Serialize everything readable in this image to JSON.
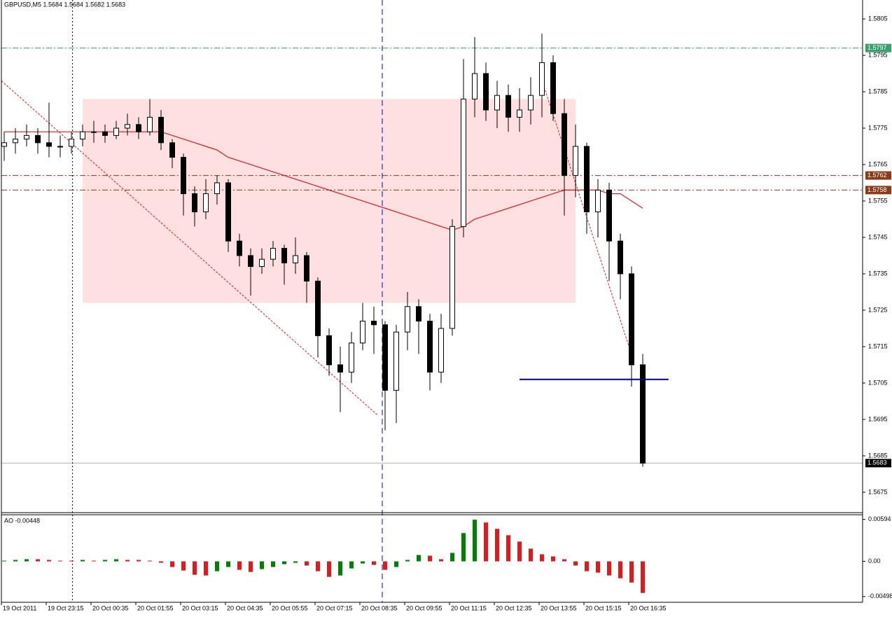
{
  "chart_data": {
    "type": "candlestick",
    "title": "GBPUSD,M5  1.5684 1.5684 1.5682 1.5683",
    "ylim": [
      1.56694,
      1.58102
    ],
    "yticks": [
      1.5805,
      1.5795,
      1.5785,
      1.5775,
      1.5765,
      1.5755,
      1.5745,
      1.5735,
      1.5725,
      1.5715,
      1.5705,
      1.5695,
      1.5685,
      1.5675
    ],
    "x_labels": [
      "19 Oct 2011",
      "19 Oct 23:15",
      "20 Oct 00:35",
      "20 Oct 01:55",
      "20 Oct 03:15",
      "20 Oct 04:35",
      "20 Oct 05:55",
      "20 Oct 07:15",
      "20 Oct 08:35",
      "20 Oct 09:55",
      "20 Oct 11:15",
      "20 Oct 12:35",
      "20 Oct 13:55",
      "20 Oct 15:15",
      "20 Oct 16:35"
    ],
    "bull_color": "#ffffff",
    "bear_color": "#000000",
    "candles": [
      [
        1.577,
        1.5774,
        1.5766,
        1.5771
      ],
      [
        1.5771,
        1.5775,
        1.5768,
        1.5772
      ],
      [
        1.5772,
        1.5776,
        1.577,
        1.5773
      ],
      [
        1.5773,
        1.5775,
        1.5768,
        1.5771
      ],
      [
        1.5771,
        1.5782,
        1.5767,
        1.577
      ],
      [
        1.577,
        1.5773,
        1.5767,
        1.577
      ],
      [
        1.577,
        1.5774,
        1.5768,
        1.5772
      ],
      [
        1.5772,
        1.5776,
        1.577,
        1.5774
      ],
      [
        1.5774,
        1.5777,
        1.5771,
        1.5774
      ],
      [
        1.5774,
        1.5776,
        1.5771,
        1.5773
      ],
      [
        1.5773,
        1.5777,
        1.5772,
        1.5775
      ],
      [
        1.5775,
        1.5779,
        1.5773,
        1.5776
      ],
      [
        1.5776,
        1.5778,
        1.5772,
        1.5774
      ],
      [
        1.5774,
        1.5783,
        1.5773,
        1.5778
      ],
      [
        1.5778,
        1.578,
        1.5769,
        1.5771
      ],
      [
        1.5771,
        1.5772,
        1.5764,
        1.5767
      ],
      [
        1.5767,
        1.5768,
        1.5751,
        1.5757
      ],
      [
        1.5757,
        1.5759,
        1.5748,
        1.5752
      ],
      [
        1.5752,
        1.5761,
        1.575,
        1.5757
      ],
      [
        1.5757,
        1.5762,
        1.5754,
        1.576
      ],
      [
        1.576,
        1.5761,
        1.5741,
        1.5744
      ],
      [
        1.5744,
        1.5746,
        1.5737,
        1.574
      ],
      [
        1.574,
        1.5742,
        1.5729,
        1.5737
      ],
      [
        1.5737,
        1.5742,
        1.5735,
        1.5739
      ],
      [
        1.5739,
        1.5744,
        1.5737,
        1.5742
      ],
      [
        1.5742,
        1.5743,
        1.5732,
        1.5738
      ],
      [
        1.5738,
        1.5745,
        1.5735,
        1.574
      ],
      [
        1.574,
        1.5741,
        1.5727,
        1.5733
      ],
      [
        1.5733,
        1.5734,
        1.5712,
        1.5718
      ],
      [
        1.5718,
        1.572,
        1.5707,
        1.571
      ],
      [
        1.571,
        1.5715,
        1.5697,
        1.5708
      ],
      [
        1.5708,
        1.5719,
        1.5705,
        1.5716
      ],
      [
        1.5716,
        1.5727,
        1.5714,
        1.5722
      ],
      [
        1.5722,
        1.5726,
        1.5713,
        1.5721
      ],
      [
        1.5721,
        1.5722,
        1.5692,
        1.5703
      ],
      [
        1.5703,
        1.5721,
        1.5694,
        1.5719
      ],
      [
        1.5719,
        1.573,
        1.5714,
        1.5726
      ],
      [
        1.5726,
        1.5728,
        1.5713,
        1.5722
      ],
      [
        1.5722,
        1.5724,
        1.5703,
        1.5708
      ],
      [
        1.5708,
        1.5724,
        1.5705,
        1.572
      ],
      [
        1.572,
        1.575,
        1.5718,
        1.5748
      ],
      [
        1.5748,
        1.5794,
        1.5745,
        1.5783
      ],
      [
        1.5783,
        1.58,
        1.5778,
        1.579
      ],
      [
        1.579,
        1.5793,
        1.5777,
        1.578
      ],
      [
        1.578,
        1.5788,
        1.5775,
        1.5784
      ],
      [
        1.5784,
        1.5787,
        1.5774,
        1.5778
      ],
      [
        1.5778,
        1.5786,
        1.5774,
        1.578
      ],
      [
        1.578,
        1.5789,
        1.5776,
        1.5784
      ],
      [
        1.5784,
        1.5801,
        1.5778,
        1.5793
      ],
      [
        1.5793,
        1.5795,
        1.5777,
        1.5779
      ],
      [
        1.5779,
        1.5783,
        1.5751,
        1.5762
      ],
      [
        1.5762,
        1.5776,
        1.5756,
        1.577
      ],
      [
        1.577,
        1.5771,
        1.5746,
        1.5752
      ],
      [
        1.5752,
        1.5761,
        1.5745,
        1.5758
      ],
      [
        1.5758,
        1.576,
        1.5733,
        1.5744
      ],
      [
        1.5744,
        1.5746,
        1.5728,
        1.5735
      ],
      [
        1.5735,
        1.5737,
        1.5704,
        1.571
      ],
      [
        1.571,
        1.5713,
        1.5682,
        1.5683
      ]
    ],
    "ma": {
      "color": "#e0191e",
      "values": [
        1.5774,
        1.5774,
        1.5774,
        1.5774,
        1.5774,
        1.5774,
        1.5774,
        1.5774,
        1.5774,
        1.5774,
        1.5774,
        1.5774,
        1.5774,
        1.5774,
        1.5774,
        1.5773,
        1.5772,
        1.5771,
        1.577,
        1.5769,
        1.5767,
        1.5766,
        1.5765,
        1.5764,
        1.5763,
        1.5762,
        1.5761,
        1.576,
        1.5759,
        1.5758,
        1.5757,
        1.5756,
        1.5755,
        1.5754,
        1.5753,
        1.5752,
        1.5751,
        1.575,
        1.5749,
        1.5748,
        1.5747,
        1.5748,
        1.575,
        1.5751,
        1.5752,
        1.5753,
        1.5754,
        1.5755,
        1.5756,
        1.5757,
        1.5758,
        1.5758,
        1.5758,
        1.5758,
        1.5757,
        1.5757,
        1.5755,
        1.5753
      ]
    },
    "zone": {
      "high": 1.5783,
      "low": 1.5727,
      "from": 7,
      "to": 51,
      "color": "#ffe0e0"
    },
    "hlines": [
      {
        "value": 1.5797,
        "color": "#3aa070",
        "tag": "#3aa070"
      },
      {
        "value": 1.5762,
        "color": "#8b3a1a",
        "tag": "#8b3a1a"
      },
      {
        "value": 1.5758,
        "color": "#8b3a1a",
        "tag": "#8b3a1a"
      },
      {
        "value": 1.5683,
        "color": "#b0b0b0",
        "tag": "#000000"
      }
    ],
    "level": {
      "value": 1.5706,
      "from": 46,
      "to": 59.3,
      "color": "#000099"
    },
    "trendlines": [
      {
        "from": [
          -0.25,
          1.5788
        ],
        "to": [
          33.4,
          1.5696
        ],
        "color": "#e0191e"
      },
      {
        "from": [
          47.8,
          1.579
        ],
        "to": [
          56.2,
          1.5711
        ],
        "color": "#e0191e"
      }
    ],
    "vlines": [
      {
        "at": 33.75,
        "color": "#0000cc"
      },
      {
        "at": 6.1,
        "color": "#000000"
      }
    ],
    "ao": {
      "title": "AO -0.00448",
      "ylim": [
        -0.0058,
        0.0066
      ],
      "yticks": [
        0.00594,
        {
          "value": 0,
          "label": "0.00"
        },
        -0.00498
      ],
      "up_color": "#008000",
      "down_color": "#e0191e",
      "values": [
        0.0001,
        0.0002,
        0.0003,
        0.0003,
        0.0002,
        0.0001,
        0.0001,
        0.0002,
        0.0001,
        0.0002,
        0.0003,
        0.0002,
        0.0002,
        0.0001,
        -0.0002,
        -0.0008,
        -0.0013,
        -0.0019,
        -0.002,
        -0.0014,
        -0.0008,
        -0.0012,
        -0.0015,
        -0.0011,
        -0.0008,
        -0.0004,
        -0.0002,
        -0.0006,
        -0.0014,
        -0.0022,
        -0.002,
        -0.001,
        -0.0003,
        -0.0005,
        -0.0012,
        -0.0008,
        0.0002,
        0.0009,
        0.0008,
        0.0003,
        0.0012,
        0.004,
        0.0059,
        0.0055,
        0.0046,
        0.0037,
        0.0028,
        0.0018,
        0.001,
        0.0007,
        0.0003,
        -0.0006,
        -0.0014,
        -0.0016,
        -0.002,
        -0.0024,
        -0.003,
        -0.00448
      ]
    }
  }
}
